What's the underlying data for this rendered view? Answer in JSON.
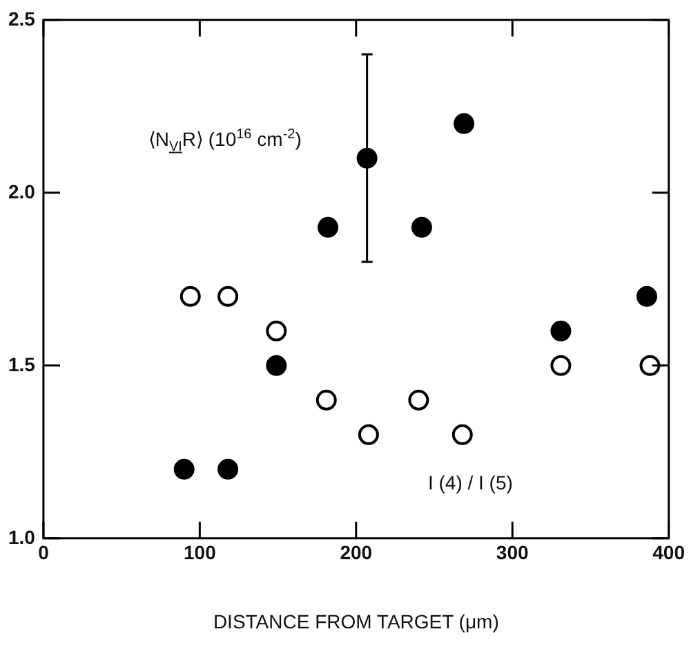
{
  "chart_data": {
    "type": "scatter",
    "xlabel": "DISTANCE FROM TARGET (μm)",
    "xlim": [
      0,
      400
    ],
    "xticks": [
      0,
      100,
      200,
      300,
      400
    ],
    "ylim": [
      1,
      2.5
    ],
    "yticks": [
      {
        "value": 1,
        "label": "1.0"
      },
      {
        "value": 1.5,
        "label": "1.5"
      },
      {
        "value": 2,
        "label": "2.0"
      },
      {
        "value": 2.5,
        "label": "2.5"
      }
    ],
    "grid": false,
    "legend": false,
    "marker": "circle",
    "series": [
      {
        "name": "⟨N$_{VI}$R⟩ (10$^{16}$ cm$^{-2}$)",
        "color": "#000000",
        "x": [
          90,
          118,
          149,
          182,
          207,
          242,
          269,
          331,
          386
        ],
        "values": [
          1.2,
          1.2,
          1.5,
          1.9,
          2.1,
          1.9,
          2.2,
          1.6,
          1.7
        ],
        "errors": [
          null,
          null,
          null,
          null,
          0.3,
          null,
          null,
          null,
          null
        ]
      },
      {
        "name": "I (4) / I (5)",
        "color": "#ffffff",
        "x": [
          94,
          118,
          149,
          181,
          208,
          240,
          268,
          331,
          388
        ],
        "values": [
          1.7,
          1.7,
          1.6,
          1.4,
          1.3,
          1.4,
          1.3,
          1.5,
          1.5
        ]
      }
    ]
  }
}
